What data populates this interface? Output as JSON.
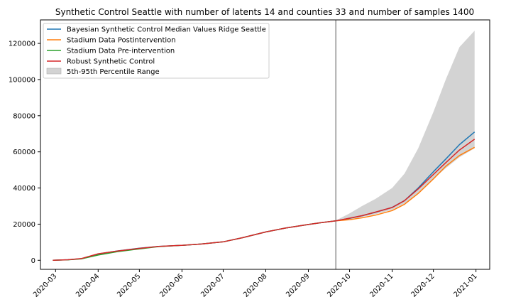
{
  "chart_data": {
    "type": "line",
    "title": "Synthetic Control Seattle with number of latents 14 and counties 33 and number of samples 1400",
    "xlabel": "",
    "ylabel": "",
    "x_ticks": [
      "2020-03",
      "2020-04",
      "2020-05",
      "2020-06",
      "2020-07",
      "2020-08",
      "2020-09",
      "2020-10",
      "2020-11",
      "2020-12",
      "2021-01"
    ],
    "y_ticks": [
      "0",
      "20000",
      "40000",
      "60000",
      "80000",
      "100000",
      "120000"
    ],
    "ylim": [
      -5000,
      133000
    ],
    "xlim": [
      "2020-02-19",
      "2021-01-11"
    ],
    "intervention_date": "2020-09-21",
    "grid": false,
    "legend_position": "top-left",
    "legend": {
      "bayes": "Bayesian Synthetic Control Median Values Ridge Seattle",
      "post": "Stadium Data Postintervention",
      "pre": "Stadium Data Pre-intervention",
      "robust": "Robust Synthetic Control",
      "band": "5th-95th Percentile Range"
    },
    "colors": {
      "bayes": "#1f77b4",
      "post": "#ff7f0e",
      "pre": "#2ca02c",
      "robust": "#d62728",
      "band": "#d3d3d3",
      "vline": "#808080"
    },
    "series": [
      {
        "key": "bayes",
        "name": "Bayesian Synthetic Control Median Values Ridge Seattle",
        "x": [
          "2020-02-28",
          "2020-03-10",
          "2020-03-20",
          "2020-04-01",
          "2020-04-15",
          "2020-05-01",
          "2020-05-15",
          "2020-06-01",
          "2020-06-15",
          "2020-07-01",
          "2020-07-15",
          "2020-08-01",
          "2020-08-15",
          "2020-09-01",
          "2020-09-10",
          "2020-09-21",
          "2020-10-01",
          "2020-10-10",
          "2020-10-20",
          "2020-11-01",
          "2020-11-10",
          "2020-11-20",
          "2020-12-01",
          "2020-12-10",
          "2020-12-20",
          "2020-12-31"
        ],
        "y": [
          0,
          300,
          900,
          3500,
          5200,
          6700,
          7700,
          8300,
          9000,
          10200,
          12500,
          15700,
          17800,
          19800,
          20800,
          21800,
          23200,
          24600,
          26600,
          29300,
          33000,
          40000,
          49000,
          56000,
          64000,
          71000
        ]
      },
      {
        "key": "post",
        "name": "Stadium Data Postintervention",
        "x": [
          "2020-09-21",
          "2020-10-01",
          "2020-10-10",
          "2020-10-20",
          "2020-11-01",
          "2020-11-10",
          "2020-11-20",
          "2020-12-01",
          "2020-12-10",
          "2020-12-20",
          "2020-12-31"
        ],
        "y": [
          21800,
          22500,
          23500,
          25000,
          27500,
          31000,
          37000,
          45000,
          52000,
          58000,
          62500
        ]
      },
      {
        "key": "pre",
        "name": "Stadium Data Pre-intervention",
        "x": [
          "2020-02-28",
          "2020-03-10",
          "2020-03-20",
          "2020-04-01",
          "2020-04-15",
          "2020-05-01",
          "2020-05-15",
          "2020-06-01",
          "2020-06-15",
          "2020-07-01",
          "2020-07-15",
          "2020-08-01",
          "2020-08-15",
          "2020-09-01",
          "2020-09-10",
          "2020-09-21"
        ],
        "y": [
          0,
          250,
          800,
          2900,
          4800,
          6300,
          7600,
          8300,
          9000,
          10200,
          12500,
          15700,
          17800,
          19800,
          20800,
          21800
        ]
      },
      {
        "key": "robust",
        "name": "Robust Synthetic Control",
        "x": [
          "2020-02-28",
          "2020-03-10",
          "2020-03-20",
          "2020-04-01",
          "2020-04-15",
          "2020-05-01",
          "2020-05-15",
          "2020-06-01",
          "2020-06-15",
          "2020-07-01",
          "2020-07-15",
          "2020-08-01",
          "2020-08-15",
          "2020-09-01",
          "2020-09-10",
          "2020-09-21",
          "2020-10-01",
          "2020-10-10",
          "2020-10-20",
          "2020-11-01",
          "2020-11-10",
          "2020-11-20",
          "2020-12-01",
          "2020-12-10",
          "2020-12-20",
          "2020-12-31"
        ],
        "y": [
          0,
          300,
          1000,
          3600,
          5100,
          6600,
          7700,
          8300,
          9000,
          10200,
          12500,
          15700,
          17800,
          19800,
          20800,
          21800,
          23300,
          24700,
          26700,
          29200,
          33000,
          39500,
          47500,
          54000,
          61000,
          67000
        ]
      }
    ],
    "band": {
      "name": "5th-95th Percentile Range",
      "x": [
        "2020-09-21",
        "2020-10-01",
        "2020-10-10",
        "2020-10-20",
        "2020-11-01",
        "2020-11-10",
        "2020-11-20",
        "2020-12-01",
        "2020-12-10",
        "2020-12-20",
        "2020-12-31"
      ],
      "low": [
        21800,
        22800,
        24000,
        25500,
        28000,
        31500,
        37000,
        45000,
        51000,
        57000,
        62000
      ],
      "high": [
        22000,
        26000,
        30000,
        34000,
        40000,
        48000,
        62000,
        82000,
        100000,
        118000,
        127000
      ]
    }
  }
}
